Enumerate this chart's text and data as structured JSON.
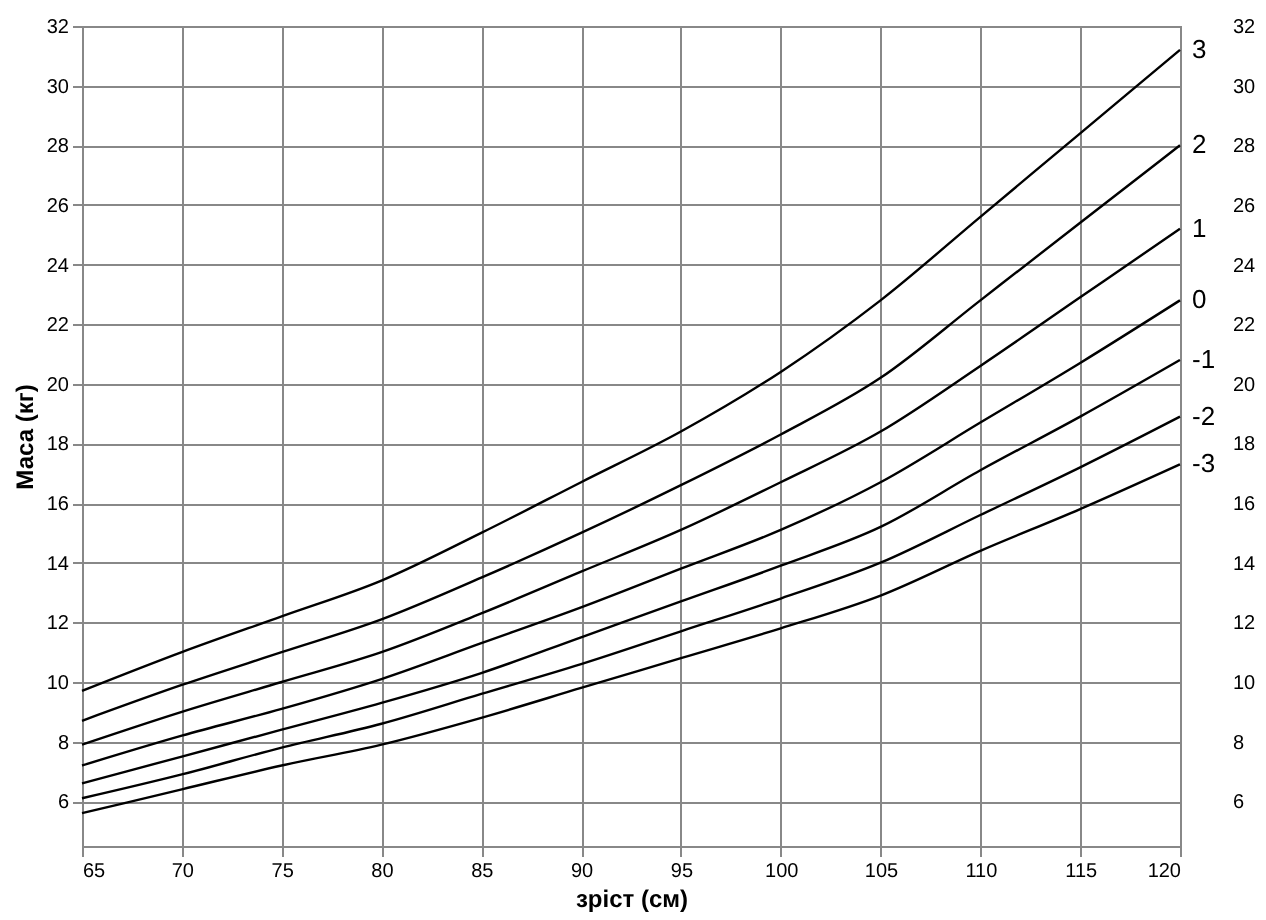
{
  "chart_data": {
    "type": "line",
    "xlabel": "зріст (см)",
    "ylabel": "Маса (кг)",
    "x": [
      65,
      70,
      75,
      80,
      85,
      90,
      95,
      100,
      105,
      110,
      115,
      120
    ],
    "xlim": [
      65,
      120
    ],
    "xticks": [
      65,
      70,
      75,
      80,
      85,
      90,
      95,
      100,
      105,
      110,
      115,
      120
    ],
    "ylim": [
      4.5,
      32
    ],
    "yticks": [
      6,
      8,
      10,
      12,
      14,
      16,
      18,
      20,
      22,
      24,
      26,
      28,
      30,
      32
    ],
    "y2lim": [
      4.5,
      32
    ],
    "y2ticks": [
      6,
      8,
      10,
      12,
      14,
      16,
      18,
      20,
      22,
      24,
      26,
      28,
      30,
      32
    ],
    "grid": true,
    "marker": "none",
    "line_style": "solid",
    "series": [
      {
        "name": "3",
        "color": "#000000",
        "values": [
          9.7,
          11.0,
          12.2,
          13.4,
          15.0,
          16.7,
          18.4,
          20.4,
          22.8,
          25.6,
          28.4,
          31.2
        ]
      },
      {
        "name": "2",
        "color": "#000000",
        "values": [
          8.7,
          9.9,
          11.0,
          12.1,
          13.5,
          15.0,
          16.6,
          18.3,
          20.2,
          22.8,
          25.4,
          28.0
        ]
      },
      {
        "name": "1",
        "color": "#000000",
        "values": [
          7.9,
          9.0,
          10.0,
          11.0,
          12.3,
          13.7,
          15.1,
          16.7,
          18.4,
          20.6,
          22.9,
          25.2
        ]
      },
      {
        "name": "0",
        "color": "#000000",
        "values": [
          7.2,
          8.2,
          9.1,
          10.1,
          11.3,
          12.5,
          13.8,
          15.1,
          16.7,
          18.7,
          20.7,
          22.8
        ]
      },
      {
        "name": "-1",
        "color": "#000000",
        "values": [
          6.6,
          7.5,
          8.4,
          9.3,
          10.3,
          11.5,
          12.7,
          13.9,
          15.2,
          17.1,
          18.9,
          20.8
        ]
      },
      {
        "name": "-2",
        "color": "#000000",
        "values": [
          6.1,
          6.9,
          7.8,
          8.6,
          9.6,
          10.6,
          11.7,
          12.8,
          14.0,
          15.6,
          17.2,
          18.9
        ]
      },
      {
        "name": "-3",
        "color": "#000000",
        "values": [
          5.6,
          6.4,
          7.2,
          7.9,
          8.8,
          9.8,
          10.8,
          11.8,
          12.9,
          14.4,
          15.8,
          17.3
        ]
      }
    ]
  }
}
